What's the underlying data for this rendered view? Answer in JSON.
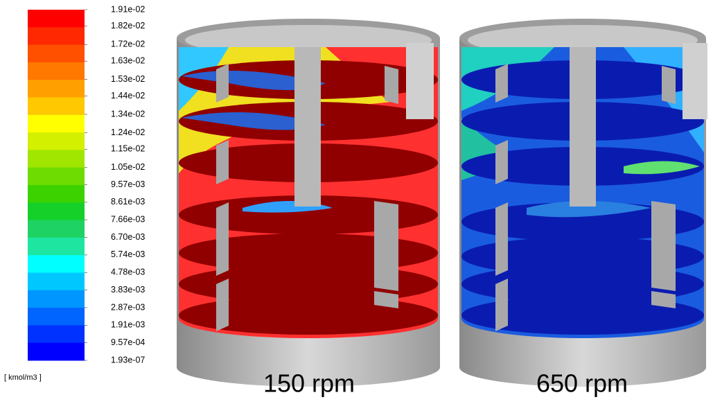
{
  "colorbar": {
    "unit": "[ kmol/m3 ]",
    "ticks": [
      {
        "value": 0.0191,
        "label": "1.91e-02"
      },
      {
        "value": 0.0182,
        "label": "1.82e-02"
      },
      {
        "value": 0.0172,
        "label": "1.72e-02"
      },
      {
        "value": 0.0163,
        "label": "1.63e-02"
      },
      {
        "value": 0.0153,
        "label": "1.53e-02"
      },
      {
        "value": 0.0144,
        "label": "1.44e-02"
      },
      {
        "value": 0.0134,
        "label": "1.34e-02"
      },
      {
        "value": 0.0124,
        "label": "1.24e-02"
      },
      {
        "value": 0.0115,
        "label": "1.15e-02"
      },
      {
        "value": 0.0105,
        "label": "1.05e-02"
      },
      {
        "value": 0.00957,
        "label": "9.57e-03"
      },
      {
        "value": 0.00861,
        "label": "8.61e-03"
      },
      {
        "value": 0.00766,
        "label": "7.66e-03"
      },
      {
        "value": 0.0067,
        "label": "6.70e-03"
      },
      {
        "value": 0.00574,
        "label": "5.74e-03"
      },
      {
        "value": 0.00478,
        "label": "4.78e-03"
      },
      {
        "value": 0.00383,
        "label": "3.83e-03"
      },
      {
        "value": 0.00287,
        "label": "2.87e-03"
      },
      {
        "value": 0.00191,
        "label": "1.91e-03"
      },
      {
        "value": 0.000957,
        "label": "9.57e-04"
      },
      {
        "value": 1.93e-07,
        "label": "1.93e-07"
      }
    ],
    "colors": [
      "#ff0000",
      "#ff2800",
      "#ff5000",
      "#ff7800",
      "#ffa000",
      "#ffc800",
      "#ffff00",
      "#d2f000",
      "#a0e600",
      "#6edc00",
      "#3cd200",
      "#14d028",
      "#1ed264",
      "#1ee6a0",
      "#00ffff",
      "#00c8ff",
      "#0096ff",
      "#0064ff",
      "#0032ff",
      "#0000ff"
    ]
  },
  "panels": [
    {
      "caption": "150 rpm"
    },
    {
      "caption": "650 rpm"
    }
  ]
}
